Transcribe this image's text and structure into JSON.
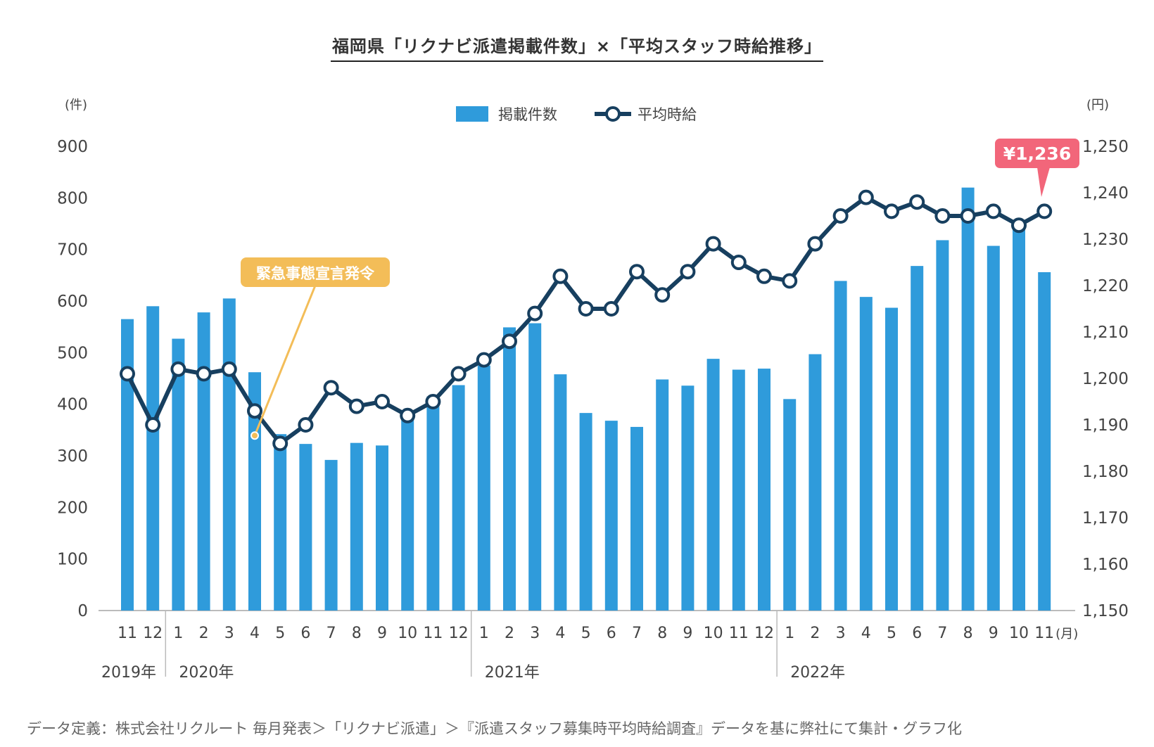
{
  "title": "福岡県「リクナビ派遣掲載件数」×「平均スタッフ時給推移」",
  "footnote": "データ定義：株式会社リクルート 毎月発表＞「リクナビ派遣」＞『派遣スタッフ募集時平均時給調査』データを基に弊社にて集計・グラフ化",
  "colors": {
    "bar": "#2f9bdb",
    "line": "#173f5f",
    "callout": "#f3bd58",
    "highlight": "#f2667a"
  },
  "chart_data": {
    "type": "bar+line",
    "left_axis": {
      "unit": "(件)",
      "min": 0,
      "max": 900,
      "ticks": [
        0,
        100,
        200,
        300,
        400,
        500,
        600,
        700,
        800,
        900
      ],
      "tick_labels": [
        "0",
        "100",
        "200",
        "300",
        "400",
        "500",
        "600",
        "700",
        "800",
        "900"
      ]
    },
    "right_axis": {
      "unit": "(円)",
      "min": 1150,
      "max": 1250,
      "ticks": [
        1150,
        1160,
        1170,
        1180,
        1190,
        1200,
        1210,
        1220,
        1230,
        1240,
        1250
      ],
      "tick_labels": [
        "1,150",
        "1,160",
        "1,170",
        "1,180",
        "1,190",
        "1,200",
        "1,210",
        "1,220",
        "1,230",
        "1,240",
        "1,250"
      ]
    },
    "month_unit": "(月)",
    "categories": [
      "11",
      "12",
      "1",
      "2",
      "3",
      "4",
      "5",
      "6",
      "7",
      "8",
      "9",
      "10",
      "11",
      "12",
      "1",
      "2",
      "3",
      "4",
      "5",
      "6",
      "7",
      "8",
      "9",
      "10",
      "11",
      "12",
      "1",
      "2",
      "3",
      "4",
      "5",
      "6",
      "7",
      "8",
      "9",
      "10",
      "11"
    ],
    "years": [
      {
        "label": "2019年",
        "start": 0
      },
      {
        "label": "2020年",
        "start": 2
      },
      {
        "label": "2021年",
        "start": 14
      },
      {
        "label": "2022年",
        "start": 26
      }
    ],
    "legend": [
      {
        "name": "掲載件数",
        "kind": "bar"
      },
      {
        "name": "平均時給",
        "kind": "line"
      }
    ],
    "series": [
      {
        "name": "掲載件数",
        "axis": "left",
        "values": [
          565,
          590,
          527,
          578,
          605,
          462,
          342,
          323,
          292,
          325,
          320,
          380,
          415,
          437,
          475,
          549,
          557,
          458,
          383,
          368,
          356,
          448,
          436,
          488,
          467,
          469,
          410,
          497,
          639,
          608,
          587,
          668,
          718,
          820,
          707,
          750,
          656
        ]
      },
      {
        "name": "平均時給",
        "axis": "right",
        "values": [
          1201,
          1190,
          1202,
          1201,
          1202,
          1193,
          1186,
          1190,
          1198,
          1194,
          1195,
          1192,
          1195,
          1201,
          1204,
          1208,
          1214,
          1222,
          1215,
          1215,
          1223,
          1218,
          1223,
          1229,
          1225,
          1222,
          1221,
          1229,
          1235,
          1239,
          1236,
          1238,
          1235,
          1235,
          1236,
          1233,
          1236
        ]
      }
    ],
    "annotations": [
      {
        "text": "緊急事態宣言発令",
        "index": 5
      },
      {
        "text": "¥1,236",
        "index": 36
      }
    ]
  }
}
